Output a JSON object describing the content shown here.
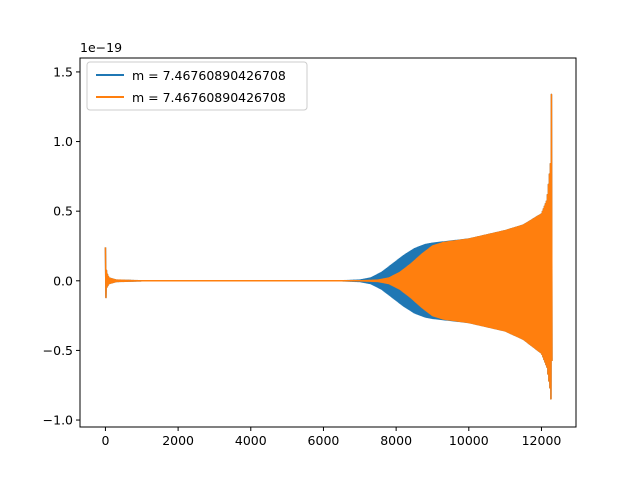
{
  "chart_data": {
    "type": "line",
    "title": "",
    "xlabel": "",
    "ylabel": "",
    "y_offset_label": "1e−19",
    "xlim": [
      -700,
      12950
    ],
    "ylim": [
      -1.05,
      1.6
    ],
    "x_ticks": [
      0,
      2000,
      4000,
      6000,
      8000,
      10000,
      12000
    ],
    "x_tick_labels": [
      "0",
      "2000",
      "4000",
      "6000",
      "8000",
      "10000",
      "12000"
    ],
    "y_ticks": [
      -1.0,
      -0.5,
      0.0,
      0.5,
      1.0,
      1.5
    ],
    "y_tick_labels": [
      "−1.0",
      "−0.5",
      "0.0",
      "0.5",
      "1.0",
      "1.5"
    ],
    "grid": false,
    "legend_position": "top-left",
    "series": [
      {
        "name": "m = 7.46760890426708",
        "color": "#1f77b4",
        "envelope_upper": [
          [
            0,
            0.24
          ],
          [
            30,
            0.06
          ],
          [
            100,
            0.02
          ],
          [
            300,
            0.005
          ],
          [
            1000,
            0.0
          ],
          [
            6500,
            0.0
          ],
          [
            7000,
            0.005
          ],
          [
            7300,
            0.02
          ],
          [
            7600,
            0.06
          ],
          [
            7900,
            0.12
          ],
          [
            8200,
            0.18
          ],
          [
            8500,
            0.23
          ],
          [
            8800,
            0.26
          ],
          [
            9000,
            0.27
          ],
          [
            10000,
            0.3
          ],
          [
            11000,
            0.36
          ],
          [
            11500,
            0.4
          ],
          [
            12000,
            0.48
          ],
          [
            12150,
            0.58
          ],
          [
            12250,
            0.85
          ],
          [
            12280,
            1.46
          ],
          [
            12300,
            0.0
          ]
        ],
        "envelope_lower": [
          [
            0,
            -0.18
          ],
          [
            30,
            -0.05
          ],
          [
            100,
            -0.02
          ],
          [
            300,
            -0.005
          ],
          [
            1000,
            0.0
          ],
          [
            6500,
            0.0
          ],
          [
            7000,
            -0.005
          ],
          [
            7300,
            -0.02
          ],
          [
            7600,
            -0.06
          ],
          [
            7900,
            -0.12
          ],
          [
            8200,
            -0.18
          ],
          [
            8500,
            -0.23
          ],
          [
            8800,
            -0.26
          ],
          [
            9000,
            -0.27
          ],
          [
            10000,
            -0.3
          ],
          [
            11000,
            -0.36
          ],
          [
            11500,
            -0.42
          ],
          [
            12000,
            -0.52
          ],
          [
            12150,
            -0.62
          ],
          [
            12250,
            -0.8
          ],
          [
            12280,
            -0.94
          ],
          [
            12300,
            0.0
          ]
        ]
      },
      {
        "name": "m = 7.46760890426708",
        "color": "#ff7f0e",
        "envelope_upper": [
          [
            0,
            0.24
          ],
          [
            30,
            0.06
          ],
          [
            100,
            0.02
          ],
          [
            300,
            0.005
          ],
          [
            1000,
            0.0
          ],
          [
            7000,
            0.0
          ],
          [
            7500,
            0.005
          ],
          [
            7800,
            0.02
          ],
          [
            8100,
            0.06
          ],
          [
            8400,
            0.12
          ],
          [
            8700,
            0.19
          ],
          [
            9000,
            0.25
          ],
          [
            9300,
            0.275
          ],
          [
            10000,
            0.3
          ],
          [
            11000,
            0.36
          ],
          [
            11500,
            0.4
          ],
          [
            12000,
            0.48
          ],
          [
            12150,
            0.58
          ],
          [
            12250,
            0.85
          ],
          [
            12280,
            1.46
          ],
          [
            12300,
            0.0
          ]
        ],
        "envelope_lower": [
          [
            0,
            -0.18
          ],
          [
            30,
            -0.05
          ],
          [
            100,
            -0.02
          ],
          [
            300,
            -0.005
          ],
          [
            1000,
            0.0
          ],
          [
            7000,
            0.0
          ],
          [
            7500,
            -0.005
          ],
          [
            7800,
            -0.02
          ],
          [
            8100,
            -0.06
          ],
          [
            8400,
            -0.12
          ],
          [
            8700,
            -0.19
          ],
          [
            9000,
            -0.25
          ],
          [
            9300,
            -0.275
          ],
          [
            10000,
            -0.3
          ],
          [
            11000,
            -0.36
          ],
          [
            11500,
            -0.42
          ],
          [
            12000,
            -0.52
          ],
          [
            12150,
            -0.62
          ],
          [
            12250,
            -0.8
          ],
          [
            12280,
            -0.94
          ],
          [
            12300,
            0.0
          ]
        ]
      }
    ]
  }
}
